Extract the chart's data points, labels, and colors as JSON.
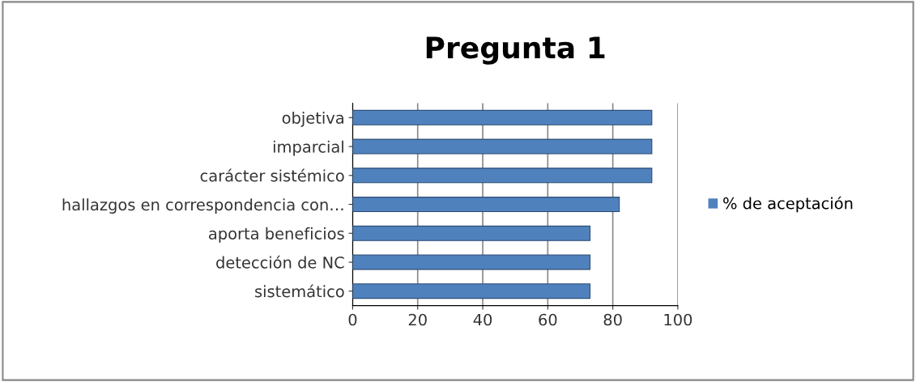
{
  "chart_data": {
    "type": "bar",
    "orientation": "horizontal",
    "title": "Pregunta 1",
    "categories": [
      "objetiva",
      "imparcial",
      "carácter sistémico",
      "hallazgos en correspondencia con…",
      "aporta beneficios",
      "detección de NC",
      "sistemático"
    ],
    "series": [
      {
        "name": "% de aceptación",
        "color": "#4f81bd",
        "values": [
          92,
          92,
          92,
          82,
          73,
          73,
          73
        ]
      }
    ],
    "xlim": [
      0,
      100
    ],
    "xticks": [
      0,
      20,
      40,
      60,
      80,
      100
    ],
    "grid": "x",
    "legend": "right"
  }
}
